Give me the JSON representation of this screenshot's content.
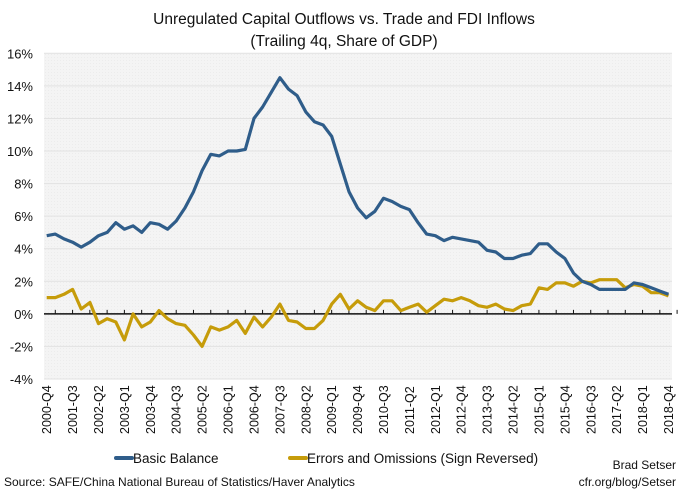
{
  "chart_data": {
    "type": "line",
    "title": "Unregulated Capital Outflows vs. Trade and FDI Inflows",
    "subtitle": "(Trailing 4q, Share of GDP)",
    "xlabel": "",
    "ylabel": "",
    "ylim": [
      -4,
      16
    ],
    "yticks": [
      -4,
      -2,
      0,
      2,
      4,
      6,
      8,
      10,
      12,
      14,
      16
    ],
    "ytick_format": "%",
    "x_start": "2000-Q4",
    "x_end": "2018-Q4",
    "x_frequency": "quarterly",
    "xtick_labels": [
      "2000-Q4",
      "2001-Q3",
      "2002-Q2",
      "2003-Q1",
      "2003-Q4",
      "2004-Q3",
      "2005-Q2",
      "2006-Q1",
      "2006-Q4",
      "2007-Q3",
      "2008-Q2",
      "2009-Q1",
      "2009-Q4",
      "2010-Q3",
      "2011-Q2",
      "2012-Q1",
      "2012-Q4",
      "2013-Q3",
      "2014-Q2",
      "2015-Q1",
      "2015-Q4",
      "2016-Q3",
      "2017-Q2",
      "2018-Q1",
      "2018-Q4"
    ],
    "grid": true,
    "legend_position": "bottom",
    "series": [
      {
        "name": "Basic Balance",
        "color": "#2f5d8a",
        "values": [
          4.8,
          4.9,
          4.6,
          4.4,
          4.1,
          4.4,
          4.8,
          5.0,
          5.6,
          5.2,
          5.4,
          5.0,
          5.6,
          5.5,
          5.2,
          5.7,
          6.5,
          7.5,
          8.8,
          9.8,
          9.7,
          10.0,
          10.0,
          10.1,
          12.0,
          12.7,
          13.6,
          14.5,
          13.8,
          13.4,
          12.4,
          11.8,
          11.6,
          10.9,
          9.2,
          7.5,
          6.5,
          5.9,
          6.3,
          7.1,
          6.9,
          6.6,
          6.4,
          5.6,
          4.9,
          4.8,
          4.5,
          4.7,
          4.6,
          4.5,
          4.4,
          3.9,
          3.8,
          3.4,
          3.4,
          3.6,
          3.7,
          4.3,
          4.3,
          3.8,
          3.4,
          2.5,
          2.0,
          1.8,
          1.5,
          1.5,
          1.5,
          1.5,
          1.9,
          1.8,
          1.6,
          1.4,
          1.2
        ]
      },
      {
        "name": "Errors and Omissions (Sign Reversed)",
        "color": "#c69c0a",
        "values": [
          1.0,
          1.0,
          1.2,
          1.5,
          0.3,
          0.7,
          -0.6,
          -0.3,
          -0.5,
          -1.6,
          0.0,
          -0.8,
          -0.5,
          0.2,
          -0.3,
          -0.6,
          -0.7,
          -1.3,
          -2.0,
          -0.8,
          -1.0,
          -0.8,
          -0.4,
          -1.2,
          -0.2,
          -0.8,
          -0.2,
          0.6,
          -0.4,
          -0.5,
          -0.9,
          -0.9,
          -0.4,
          0.6,
          1.2,
          0.3,
          0.8,
          0.4,
          0.2,
          0.8,
          0.8,
          0.2,
          0.4,
          0.6,
          0.1,
          0.5,
          0.9,
          0.8,
          1.0,
          0.8,
          0.5,
          0.4,
          0.6,
          0.3,
          0.2,
          0.5,
          0.6,
          1.6,
          1.5,
          1.9,
          1.9,
          1.7,
          2.0,
          1.9,
          2.1,
          2.1,
          2.1,
          1.6,
          1.8,
          1.7,
          1.3,
          1.3,
          1.1
        ]
      }
    ]
  },
  "footer": {
    "source": "Source: SAFE/China National Bureau of Statistics/Haver Analytics",
    "author": "Brad Setser",
    "url": "cfr.org/blog/Setser"
  }
}
